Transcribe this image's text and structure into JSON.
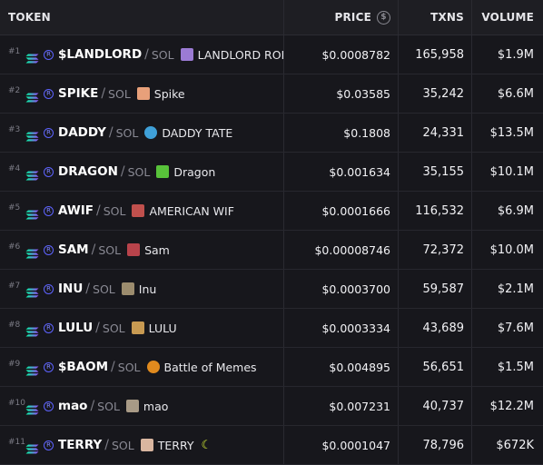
{
  "header": {
    "token": "TOKEN",
    "price": "PRICE",
    "txns": "TXNS",
    "volume": "VOLUME"
  },
  "colors": {
    "background": "#17171c",
    "header_background": "#1e1e23",
    "solana_gradient": [
      "#00ffa3",
      "#9945ff"
    ],
    "raydium": "#5d63ff"
  },
  "rows": [
    {
      "rank": "#1",
      "symbol": "$LANDLORD",
      "quote": "SOL",
      "name": "LANDLORD RON",
      "price": "$0.0008782",
      "txns": "165,958",
      "volume": "$1.9M",
      "avatar_color": "#9b7bd4"
    },
    {
      "rank": "#2",
      "symbol": "SPIKE",
      "quote": "SOL",
      "name": "Spike",
      "price": "$0.03585",
      "txns": "35,242",
      "volume": "$6.6M",
      "avatar_color": "#e8a07a"
    },
    {
      "rank": "#3",
      "symbol": "DADDY",
      "quote": "SOL",
      "name": "DADDY TATE",
      "price": "$0.1808",
      "txns": "24,331",
      "volume": "$13.5M",
      "avatar_color": "#3fa0d8"
    },
    {
      "rank": "#4",
      "symbol": "DRAGON",
      "quote": "SOL",
      "name": "Dragon",
      "price": "$0.001634",
      "txns": "35,155",
      "volume": "$10.1M",
      "avatar_color": "#58c23a"
    },
    {
      "rank": "#5",
      "symbol": "AWIF",
      "quote": "SOL",
      "name": "AMERICAN WIF",
      "price": "$0.0001666",
      "txns": "116,532",
      "volume": "$6.9M",
      "avatar_color": "#c0504d"
    },
    {
      "rank": "#6",
      "symbol": "SAM",
      "quote": "SOL",
      "name": "Sam",
      "price": "$0.00008746",
      "txns": "72,372",
      "volume": "$10.0M",
      "avatar_color": "#b8434b"
    },
    {
      "rank": "#7",
      "symbol": "INU",
      "quote": "SOL",
      "name": "Inu",
      "price": "$0.0003700",
      "txns": "59,587",
      "volume": "$2.1M",
      "avatar_color": "#9c8c6e"
    },
    {
      "rank": "#8",
      "symbol": "LULU",
      "quote": "SOL",
      "name": "LULU",
      "price": "$0.0003334",
      "txns": "43,689",
      "volume": "$7.6M",
      "avatar_color": "#c89a52"
    },
    {
      "rank": "#9",
      "symbol": "$BAOM",
      "quote": "SOL",
      "name": "Battle of Memes",
      "price": "$0.004895",
      "txns": "56,651",
      "volume": "$1.5M",
      "avatar_color": "#e08a1e"
    },
    {
      "rank": "#10",
      "symbol": "mao",
      "quote": "SOL",
      "name": "mao",
      "price": "$0.007231",
      "txns": "40,737",
      "volume": "$12.2M",
      "avatar_color": "#a89a86"
    },
    {
      "rank": "#11",
      "symbol": "TERRY",
      "quote": "SOL",
      "name": "TERRY",
      "price": "$0.0001047",
      "txns": "78,796",
      "volume": "$672K",
      "avatar_color": "#d9b6a0",
      "extra_icon": "moon-icon"
    }
  ]
}
